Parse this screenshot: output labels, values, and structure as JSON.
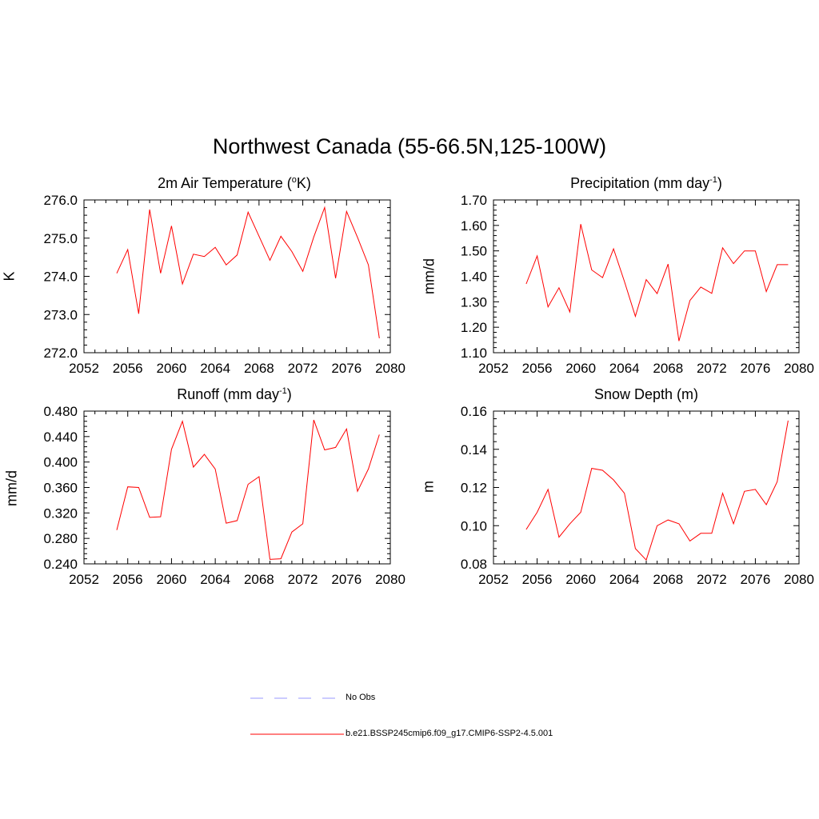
{
  "figure": {
    "title": "Northwest Canada (55-66.5N,125-100W)"
  },
  "legend": {
    "items": [
      {
        "label": "No Obs",
        "color": "#9999ff",
        "style": "dashed"
      },
      {
        "label": "b.e21.BSSP245cmip6.f09_g17.CMIP6-SSP2-4.5.001",
        "color": "#ff0000",
        "style": "solid"
      }
    ]
  },
  "chart_data": [
    {
      "type": "line",
      "title": "2m Air Temperature (",
      "title_sup": "o",
      "title_suffix": "K)",
      "ylabel": "K",
      "xlim": [
        2052,
        2080
      ],
      "ylim": [
        272.0,
        276.0
      ],
      "xticks": [
        "2052",
        "2056",
        "2060",
        "2064",
        "2068",
        "2072",
        "2076",
        "2080"
      ],
      "yticks": [
        "272.0",
        "273.0",
        "274.0",
        "275.0",
        "276.0"
      ],
      "x": [
        2055,
        2056,
        2057,
        2058,
        2059,
        2060,
        2061,
        2062,
        2063,
        2064,
        2065,
        2066,
        2067,
        2068,
        2069,
        2070,
        2071,
        2072,
        2073,
        2074,
        2075,
        2076,
        2077,
        2078,
        2079
      ],
      "series": [
        {
          "values": [
            274.08,
            274.7,
            273.02,
            275.75,
            274.08,
            275.32,
            273.8,
            274.58,
            274.52,
            274.76,
            274.3,
            274.56,
            275.68,
            275.05,
            274.42,
            275.05,
            274.65,
            274.13,
            275.03,
            275.8,
            273.95,
            275.7,
            275.02,
            274.3,
            272.38
          ],
          "color": "#ff0000"
        }
      ]
    },
    {
      "type": "line",
      "title": "Precipitation (mm day",
      "title_sup": "-1",
      "title_suffix": ")",
      "ylabel": "mm/d",
      "xlim": [
        2052,
        2080
      ],
      "ylim": [
        1.1,
        1.7
      ],
      "xticks": [
        "2052",
        "2056",
        "2060",
        "2064",
        "2068",
        "2072",
        "2076",
        "2080"
      ],
      "yticks": [
        "1.10",
        "1.20",
        "1.30",
        "1.40",
        "1.50",
        "1.60",
        "1.70"
      ],
      "x": [
        2055,
        2056,
        2057,
        2058,
        2059,
        2060,
        2061,
        2062,
        2063,
        2064,
        2065,
        2066,
        2067,
        2068,
        2069,
        2070,
        2071,
        2072,
        2073,
        2074,
        2075,
        2076,
        2077,
        2078,
        2079
      ],
      "series": [
        {
          "values": [
            1.37,
            1.48,
            1.28,
            1.355,
            1.26,
            1.605,
            1.425,
            1.395,
            1.508,
            1.38,
            1.243,
            1.387,
            1.332,
            1.448,
            1.146,
            1.305,
            1.358,
            1.333,
            1.512,
            1.45,
            1.5,
            1.5,
            1.34,
            1.446,
            1.446
          ],
          "color": "#ff0000"
        }
      ]
    },
    {
      "type": "line",
      "title": "Runoff (mm day",
      "title_sup": "-1",
      "title_suffix": ")",
      "ylabel": "mm/d",
      "xlim": [
        2052,
        2080
      ],
      "ylim": [
        0.24,
        0.48
      ],
      "xticks": [
        "2052",
        "2056",
        "2060",
        "2064",
        "2068",
        "2072",
        "2076",
        "2080"
      ],
      "yticks": [
        "0.240",
        "0.280",
        "0.320",
        "0.360",
        "0.400",
        "0.440",
        "0.480"
      ],
      "x": [
        2055,
        2056,
        2057,
        2058,
        2059,
        2060,
        2061,
        2062,
        2063,
        2064,
        2065,
        2066,
        2067,
        2068,
        2069,
        2070,
        2071,
        2072,
        2073,
        2074,
        2075,
        2076,
        2077,
        2078,
        2079
      ],
      "series": [
        {
          "values": [
            0.293,
            0.361,
            0.36,
            0.313,
            0.314,
            0.42,
            0.464,
            0.392,
            0.412,
            0.389,
            0.304,
            0.308,
            0.365,
            0.377,
            0.247,
            0.248,
            0.29,
            0.303,
            0.466,
            0.419,
            0.423,
            0.452,
            0.354,
            0.389,
            0.443
          ],
          "color": "#ff0000"
        }
      ]
    },
    {
      "type": "line",
      "title": "Snow Depth (m)",
      "title_sup": "",
      "title_suffix": "",
      "ylabel": "m",
      "xlim": [
        2052,
        2080
      ],
      "ylim": [
        0.08,
        0.16
      ],
      "xticks": [
        "2052",
        "2056",
        "2060",
        "2064",
        "2068",
        "2072",
        "2076",
        "2080"
      ],
      "yticks": [
        "0.08",
        "0.10",
        "0.12",
        "0.14",
        "0.16"
      ],
      "x": [
        2055,
        2056,
        2057,
        2058,
        2059,
        2060,
        2061,
        2062,
        2063,
        2064,
        2065,
        2066,
        2067,
        2068,
        2069,
        2070,
        2071,
        2072,
        2073,
        2074,
        2075,
        2076,
        2077,
        2078,
        2079
      ],
      "series": [
        {
          "values": [
            0.098,
            0.107,
            0.119,
            0.094,
            0.101,
            0.107,
            0.13,
            0.129,
            0.124,
            0.117,
            0.088,
            0.082,
            0.1,
            0.103,
            0.101,
            0.092,
            0.096,
            0.096,
            0.117,
            0.101,
            0.118,
            0.119,
            0.111,
            0.123,
            0.155
          ],
          "color": "#ff0000"
        }
      ]
    }
  ]
}
